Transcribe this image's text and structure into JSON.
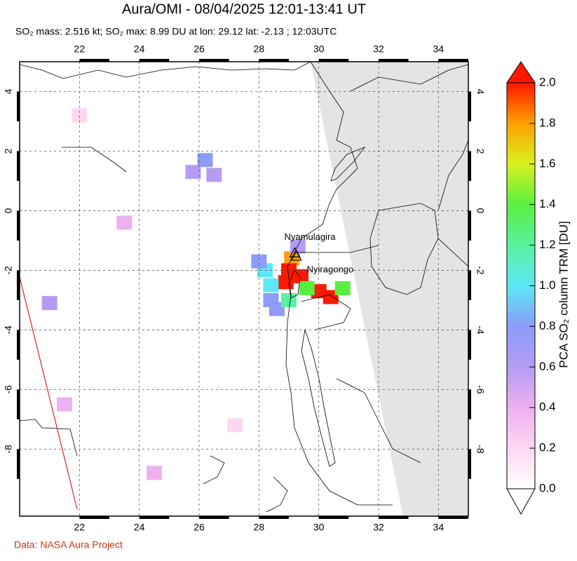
{
  "map": {
    "title": "Aura/OMI - 08/04/2025 12:01-13:41 UT",
    "subtitle": "SO₂ mass: 2.516 kt; SO₂ max: 8.99 DU at lon: 29.12 lat: -2.13 ; 12:03UTC",
    "lon_range": [
      20,
      35
    ],
    "lat_range": [
      -10.25,
      5
    ],
    "lon_ticks": [
      22,
      24,
      26,
      28,
      30,
      32,
      34
    ],
    "lat_ticks": [
      4,
      2,
      0,
      -2,
      -4,
      -6,
      -8
    ],
    "volcanoes": [
      {
        "name": "Nyamulagira",
        "lon": 29.2,
        "lat": -1.41
      },
      {
        "name": "Nyiragongo",
        "lon": 29.25,
        "lat": -1.52
      }
    ],
    "so2_cells": [
      {
        "lon": 29.1,
        "lat": -1.6,
        "value": 1.8
      },
      {
        "lon": 29.0,
        "lat": -2.0,
        "value": 2.0
      },
      {
        "lon": 28.9,
        "lat": -2.4,
        "value": 2.0
      },
      {
        "lon": 29.4,
        "lat": -2.2,
        "value": 1.9
      },
      {
        "lon": 30.0,
        "lat": -2.7,
        "value": 2.0
      },
      {
        "lon": 30.4,
        "lat": -2.9,
        "value": 2.0
      },
      {
        "lon": 29.6,
        "lat": -2.6,
        "value": 1.4
      },
      {
        "lon": 30.8,
        "lat": -2.6,
        "value": 1.3
      },
      {
        "lon": 28.4,
        "lat": -2.5,
        "value": 1.0
      },
      {
        "lon": 28.2,
        "lat": -2.0,
        "value": 0.9
      },
      {
        "lon": 28.4,
        "lat": -3.0,
        "value": 0.8
      },
      {
        "lon": 28.6,
        "lat": -3.3,
        "value": 0.7
      },
      {
        "lon": 28.0,
        "lat": -1.7,
        "value": 0.7
      },
      {
        "lon": 29.0,
        "lat": -3.0,
        "value": 1.1
      },
      {
        "lon": 29.3,
        "lat": -1.2,
        "value": 0.5
      },
      {
        "lon": 26.2,
        "lat": 1.7,
        "value": 0.7
      },
      {
        "lon": 25.8,
        "lat": 1.3,
        "value": 0.6
      },
      {
        "lon": 26.5,
        "lat": 1.2,
        "value": 0.5
      },
      {
        "lon": 21.0,
        "lat": -3.1,
        "value": 0.5
      },
      {
        "lon": 21.5,
        "lat": -6.5,
        "value": 0.4
      },
      {
        "lon": 23.5,
        "lat": -0.4,
        "value": 0.3
      },
      {
        "lon": 24.5,
        "lat": -8.8,
        "value": 0.3
      },
      {
        "lon": 27.2,
        "lat": -7.2,
        "value": 0.2
      },
      {
        "lon": 22.0,
        "lat": 3.2,
        "value": 0.2
      }
    ],
    "colorbar": {
      "label": "PCA SO₂ column TRM [DU]",
      "range": [
        0,
        2
      ],
      "ticks": [
        {
          "value": 0,
          "label": "0.0"
        },
        {
          "value": 0.2,
          "label": "0.2"
        },
        {
          "value": 0.4,
          "label": "0.4"
        },
        {
          "value": 0.6,
          "label": "0.6"
        },
        {
          "value": 0.8,
          "label": "0.8"
        },
        {
          "value": 1,
          "label": "1.0"
        },
        {
          "value": 1.2,
          "label": "1.2"
        },
        {
          "value": 1.4,
          "label": "1.4"
        },
        {
          "value": 1.6,
          "label": "1.6"
        },
        {
          "value": 1.8,
          "label": "1.8"
        },
        {
          "value": 2,
          "label": "2.0"
        }
      ],
      "colors": [
        "#ffffff",
        "#fdd7f2",
        "#eeb0f0",
        "#b49cf4",
        "#8c9cf8",
        "#5ce8f4",
        "#5cf0a0",
        "#58f040",
        "#d8f020",
        "#ffa000",
        "#ff1800"
      ]
    },
    "credit": "Data: NASA Aura Project"
  }
}
